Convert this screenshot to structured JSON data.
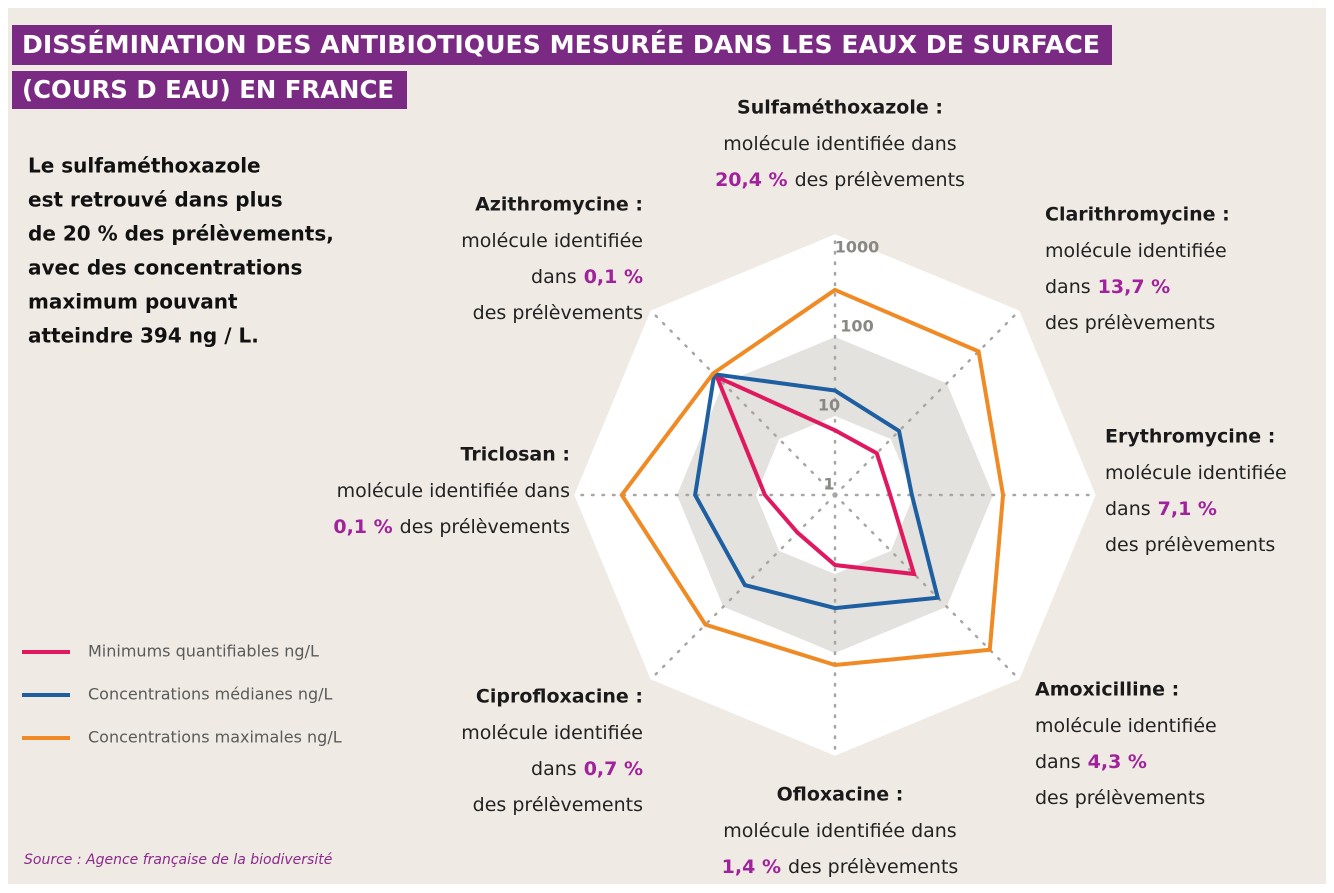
{
  "chart_data": {
    "type": "radar",
    "title": [
      "DISSÉMINATION DES ANTIBIOTIQUES MESURÉE DANS LES EAUX DE SURFACE",
      "(COURS D EAU) EN FRANCE"
    ],
    "note": [
      "Le sulfaméthoxazole",
      "est retrouvé dans plus",
      "de 20 % des prélèvements,",
      "avec des concentrations",
      "maximum pouvant",
      "atteindre 394 ng / L."
    ],
    "source": "Source : Agence française de la biodiversité",
    "categories": [
      "Sulfaméthoxazole :",
      "Clarithromycine :",
      "Erythromycine :",
      "Amoxicilline :",
      "Ofloxacine :",
      "Ciprofloxacine :",
      "Triclosan :",
      "Azithromycine :"
    ],
    "annotations": [
      {
        "lines": [
          [
            {
              "text": "molécule identifiée dans",
              "highlight": false
            }
          ],
          [
            {
              "text": "20,4 %",
              "highlight": true
            },
            {
              "text": "des prélèvements",
              "highlight": false
            }
          ]
        ]
      },
      {
        "lines": [
          [
            {
              "text": "molécule identifiée",
              "highlight": false
            }
          ],
          [
            {
              "text": "dans",
              "highlight": false
            },
            {
              "text": "13,7 %",
              "highlight": true
            }
          ],
          [
            {
              "text": "des prélèvements",
              "highlight": false
            }
          ]
        ]
      },
      {
        "lines": [
          [
            {
              "text": "molécule identifiée",
              "highlight": false
            }
          ],
          [
            {
              "text": "dans",
              "highlight": false
            },
            {
              "text": "7,1 %",
              "highlight": true
            }
          ],
          [
            {
              "text": "des prélèvements",
              "highlight": false
            }
          ]
        ]
      },
      {
        "lines": [
          [
            {
              "text": "molécule identifiée",
              "highlight": false
            }
          ],
          [
            {
              "text": "dans",
              "highlight": false
            },
            {
              "text": "4,3 %",
              "highlight": true
            }
          ],
          [
            {
              "text": "des prélèvements",
              "highlight": false
            }
          ]
        ]
      },
      {
        "lines": [
          [
            {
              "text": "molécule identifiée dans",
              "highlight": false
            }
          ],
          [
            {
              "text": "1,4 %",
              "highlight": true
            },
            {
              "text": "des prélèvements",
              "highlight": false
            }
          ]
        ]
      },
      {
        "lines": [
          [
            {
              "text": "molécule identifiée",
              "highlight": false
            }
          ],
          [
            {
              "text": "dans",
              "highlight": false
            },
            {
              "text": "0,7 %",
              "highlight": true
            }
          ],
          [
            {
              "text": "des prélèvements",
              "highlight": false
            }
          ]
        ]
      },
      {
        "lines": [
          [
            {
              "text": "molécule identifiée dans",
              "highlight": false
            }
          ],
          [
            {
              "text": "0,1 %",
              "highlight": true
            },
            {
              "text": "des prélèvements",
              "highlight": false
            }
          ]
        ]
      },
      {
        "lines": [
          [
            {
              "text": "molécule identifiée",
              "highlight": false
            }
          ],
          [
            {
              "text": "dans",
              "highlight": false
            },
            {
              "text": "0,1 %",
              "highlight": true
            }
          ],
          [
            {
              "text": "des prélèvements",
              "highlight": false
            }
          ]
        ]
      }
    ],
    "series": [
      {
        "name": "Minimums quantifiables ng/L",
        "color": "#e0185f",
        "values": [
          6.6,
          5.6,
          5,
          26,
          7.7,
          4.7,
          7.7,
          130
        ]
      },
      {
        "name": "Concentrations médianes ng/L",
        "color": "#1d5fa0",
        "values": [
          21,
          14,
          9.4,
          69,
          27,
          41,
          59,
          145
        ]
      },
      {
        "name": "Concentrations maximales ng/L",
        "color": "#f08a24",
        "values": [
          394,
          372,
          134,
          590,
          142,
          209,
          500,
          151
        ]
      }
    ],
    "ylim": [
      1,
      1000
    ],
    "yticks": [
      1,
      10,
      100,
      1000
    ],
    "log_scale": true,
    "highlight_color": "#a0239b"
  }
}
